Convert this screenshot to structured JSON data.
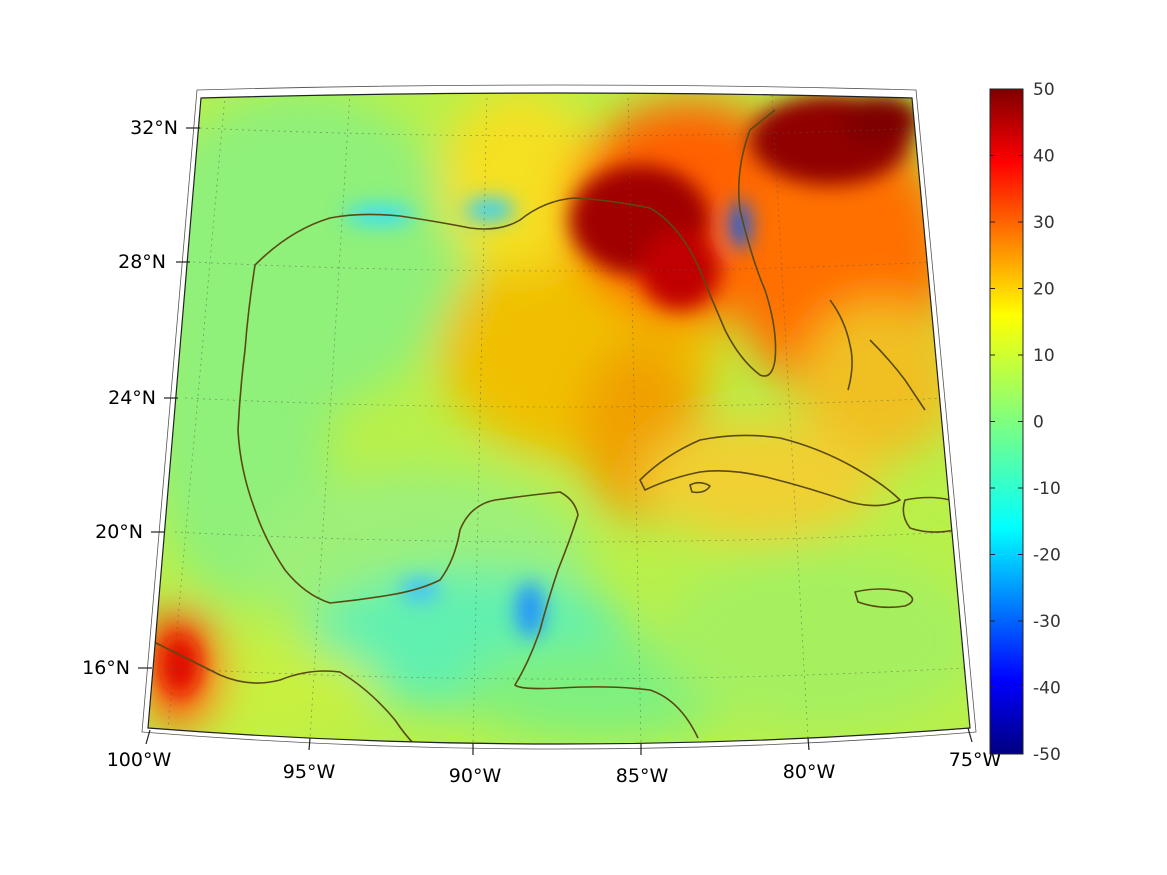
{
  "map": {
    "projection": "lambert-conformal",
    "region": "Gulf of Mexico and Caribbean",
    "lon_labels": [
      {
        "lon": -100,
        "label": "100°W"
      },
      {
        "lon": -95,
        "label": "95°W"
      },
      {
        "lon": -90,
        "label": "90°W"
      },
      {
        "lon": -85,
        "label": "85°W"
      },
      {
        "lon": -80,
        "label": "80°W"
      },
      {
        "lon": -75,
        "label": "75°W"
      }
    ],
    "lat_labels": [
      {
        "lat": 16,
        "label": "16°N"
      },
      {
        "lat": 20,
        "label": "20°N"
      },
      {
        "lat": 24,
        "label": "24°N"
      },
      {
        "lat": 28,
        "label": "28°N"
      },
      {
        "lat": 32,
        "label": "32°N"
      }
    ],
    "grid": true,
    "coastline_color": "#5a4a12"
  },
  "colorbar": {
    "colormap": "jet",
    "min": -50,
    "max": 50,
    "ticks": [
      "50",
      "40",
      "30",
      "20",
      "10",
      "0",
      "-10",
      "-20",
      "-30",
      "-40",
      "-50"
    ],
    "position": "right"
  },
  "colors": {
    "field_background": "#7ff07f",
    "hot": "#800000",
    "cold": "#00007f"
  }
}
